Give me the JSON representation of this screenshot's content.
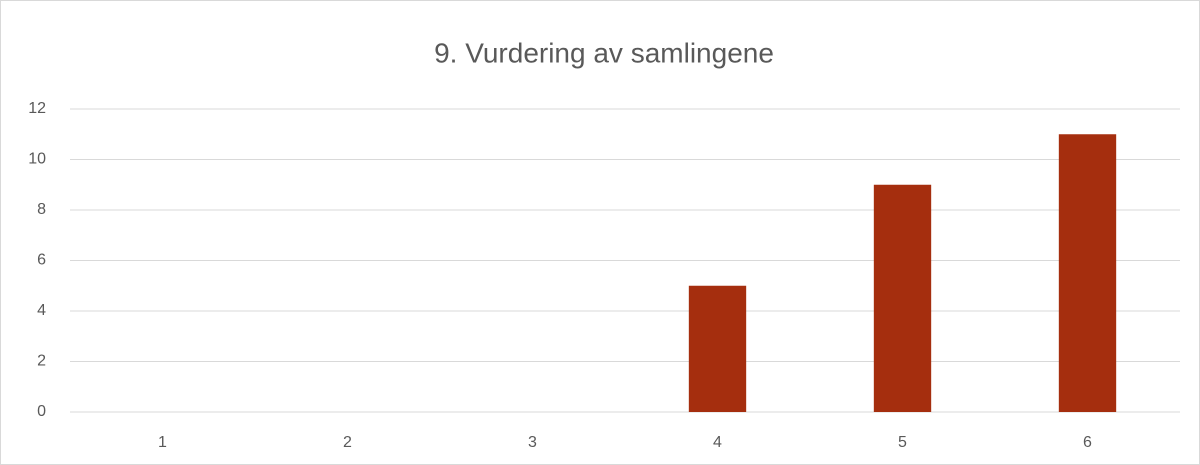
{
  "chart_data": {
    "type": "bar",
    "title": "9. Vurdering av samlingene",
    "categories": [
      "1",
      "2",
      "3",
      "4",
      "5",
      "6"
    ],
    "values": [
      0,
      0,
      0,
      5,
      9,
      11
    ],
    "color": "#a52e0e",
    "ylim": [
      0,
      12
    ],
    "yticks": [
      0,
      2,
      4,
      6,
      8,
      10,
      12
    ],
    "grid": true
  }
}
